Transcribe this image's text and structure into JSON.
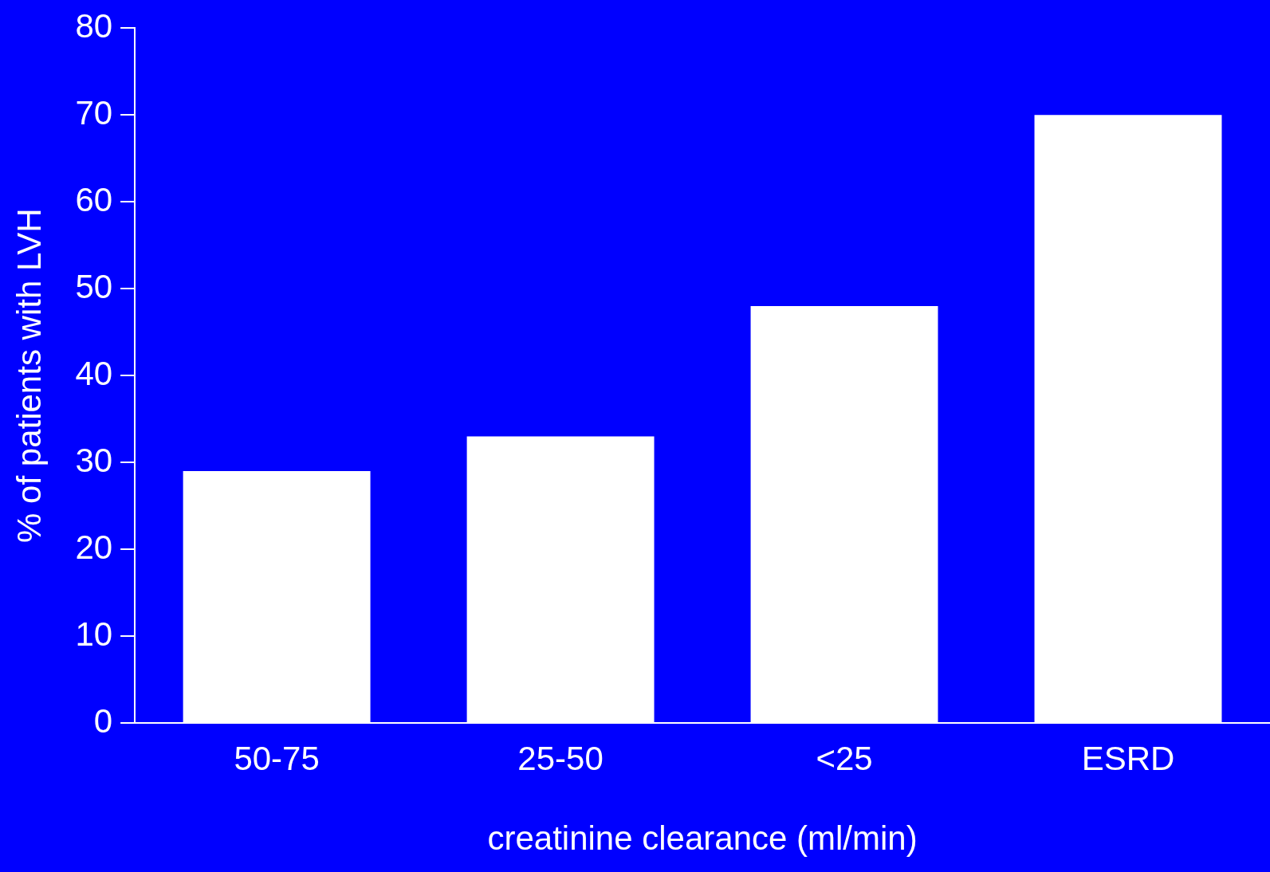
{
  "chart_data": {
    "type": "bar",
    "xlabel": "creatinine clearance (ml/min)",
    "ylabel": "% of patients with LVH",
    "categories": [
      "50-75",
      "25-50",
      "<25",
      "ESRD"
    ],
    "values": [
      29,
      33,
      48,
      70
    ],
    "color": "#ffffff",
    "ylim": [
      0,
      80
    ],
    "yticks": [
      0,
      10,
      20,
      30,
      40,
      50,
      60,
      70,
      80
    ],
    "grid": false,
    "legend": false
  }
}
